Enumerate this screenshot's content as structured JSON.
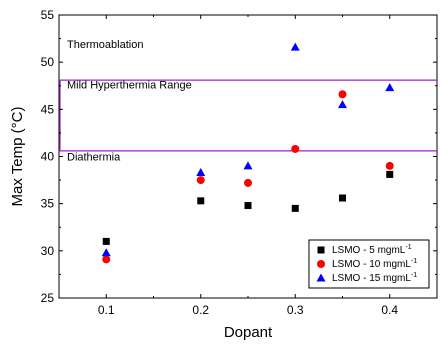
{
  "chart_data": {
    "type": "scatter",
    "xlabel": "Dopant",
    "ylabel": "Max Temp (°C)",
    "xlim": [
      0.05,
      0.45
    ],
    "ylim": [
      25,
      55
    ],
    "x_ticks": [
      "0.1",
      "0.2",
      "0.3",
      "0.4"
    ],
    "y_ticks": [
      "25",
      "30",
      "35",
      "40",
      "45",
      "50",
      "55"
    ],
    "grid": false,
    "legend_position": "bottom-right",
    "series": [
      {
        "name": "LSMO - 5 mgmL",
        "unit_sup": "-1",
        "marker": "square",
        "color": "#000000",
        "x": [
          0.1,
          0.2,
          0.25,
          0.3,
          0.35,
          0.4
        ],
        "y": [
          31.0,
          35.3,
          34.8,
          34.5,
          35.6,
          38.1
        ]
      },
      {
        "name": "LSMO - 10 mgmL",
        "unit_sup": "-1",
        "marker": "circle",
        "color": "#ff0000",
        "x": [
          0.1,
          0.2,
          0.25,
          0.3,
          0.35,
          0.4
        ],
        "y": [
          29.1,
          37.5,
          37.2,
          40.8,
          46.6,
          39.0
        ]
      },
      {
        "name": "LSMO - 15 mgmL",
        "unit_sup": "-1",
        "marker": "triangle",
        "color": "#0000ff",
        "x": [
          0.1,
          0.2,
          0.25,
          0.3,
          0.35,
          0.4
        ],
        "y": [
          29.8,
          38.3,
          39.0,
          51.6,
          45.5,
          47.3
        ]
      }
    ],
    "reference_lines": [
      {
        "y": 48.1,
        "color": "#a020c8"
      },
      {
        "y": 40.6,
        "color": "#a020c8"
      }
    ],
    "annotations": [
      {
        "text": "Thermoablation",
        "at_y": 51.5
      },
      {
        "text": "Mild Hyperthermia Range",
        "at_y": 47.2
      },
      {
        "text": "Diathermia",
        "at_y": 39.6
      }
    ]
  }
}
